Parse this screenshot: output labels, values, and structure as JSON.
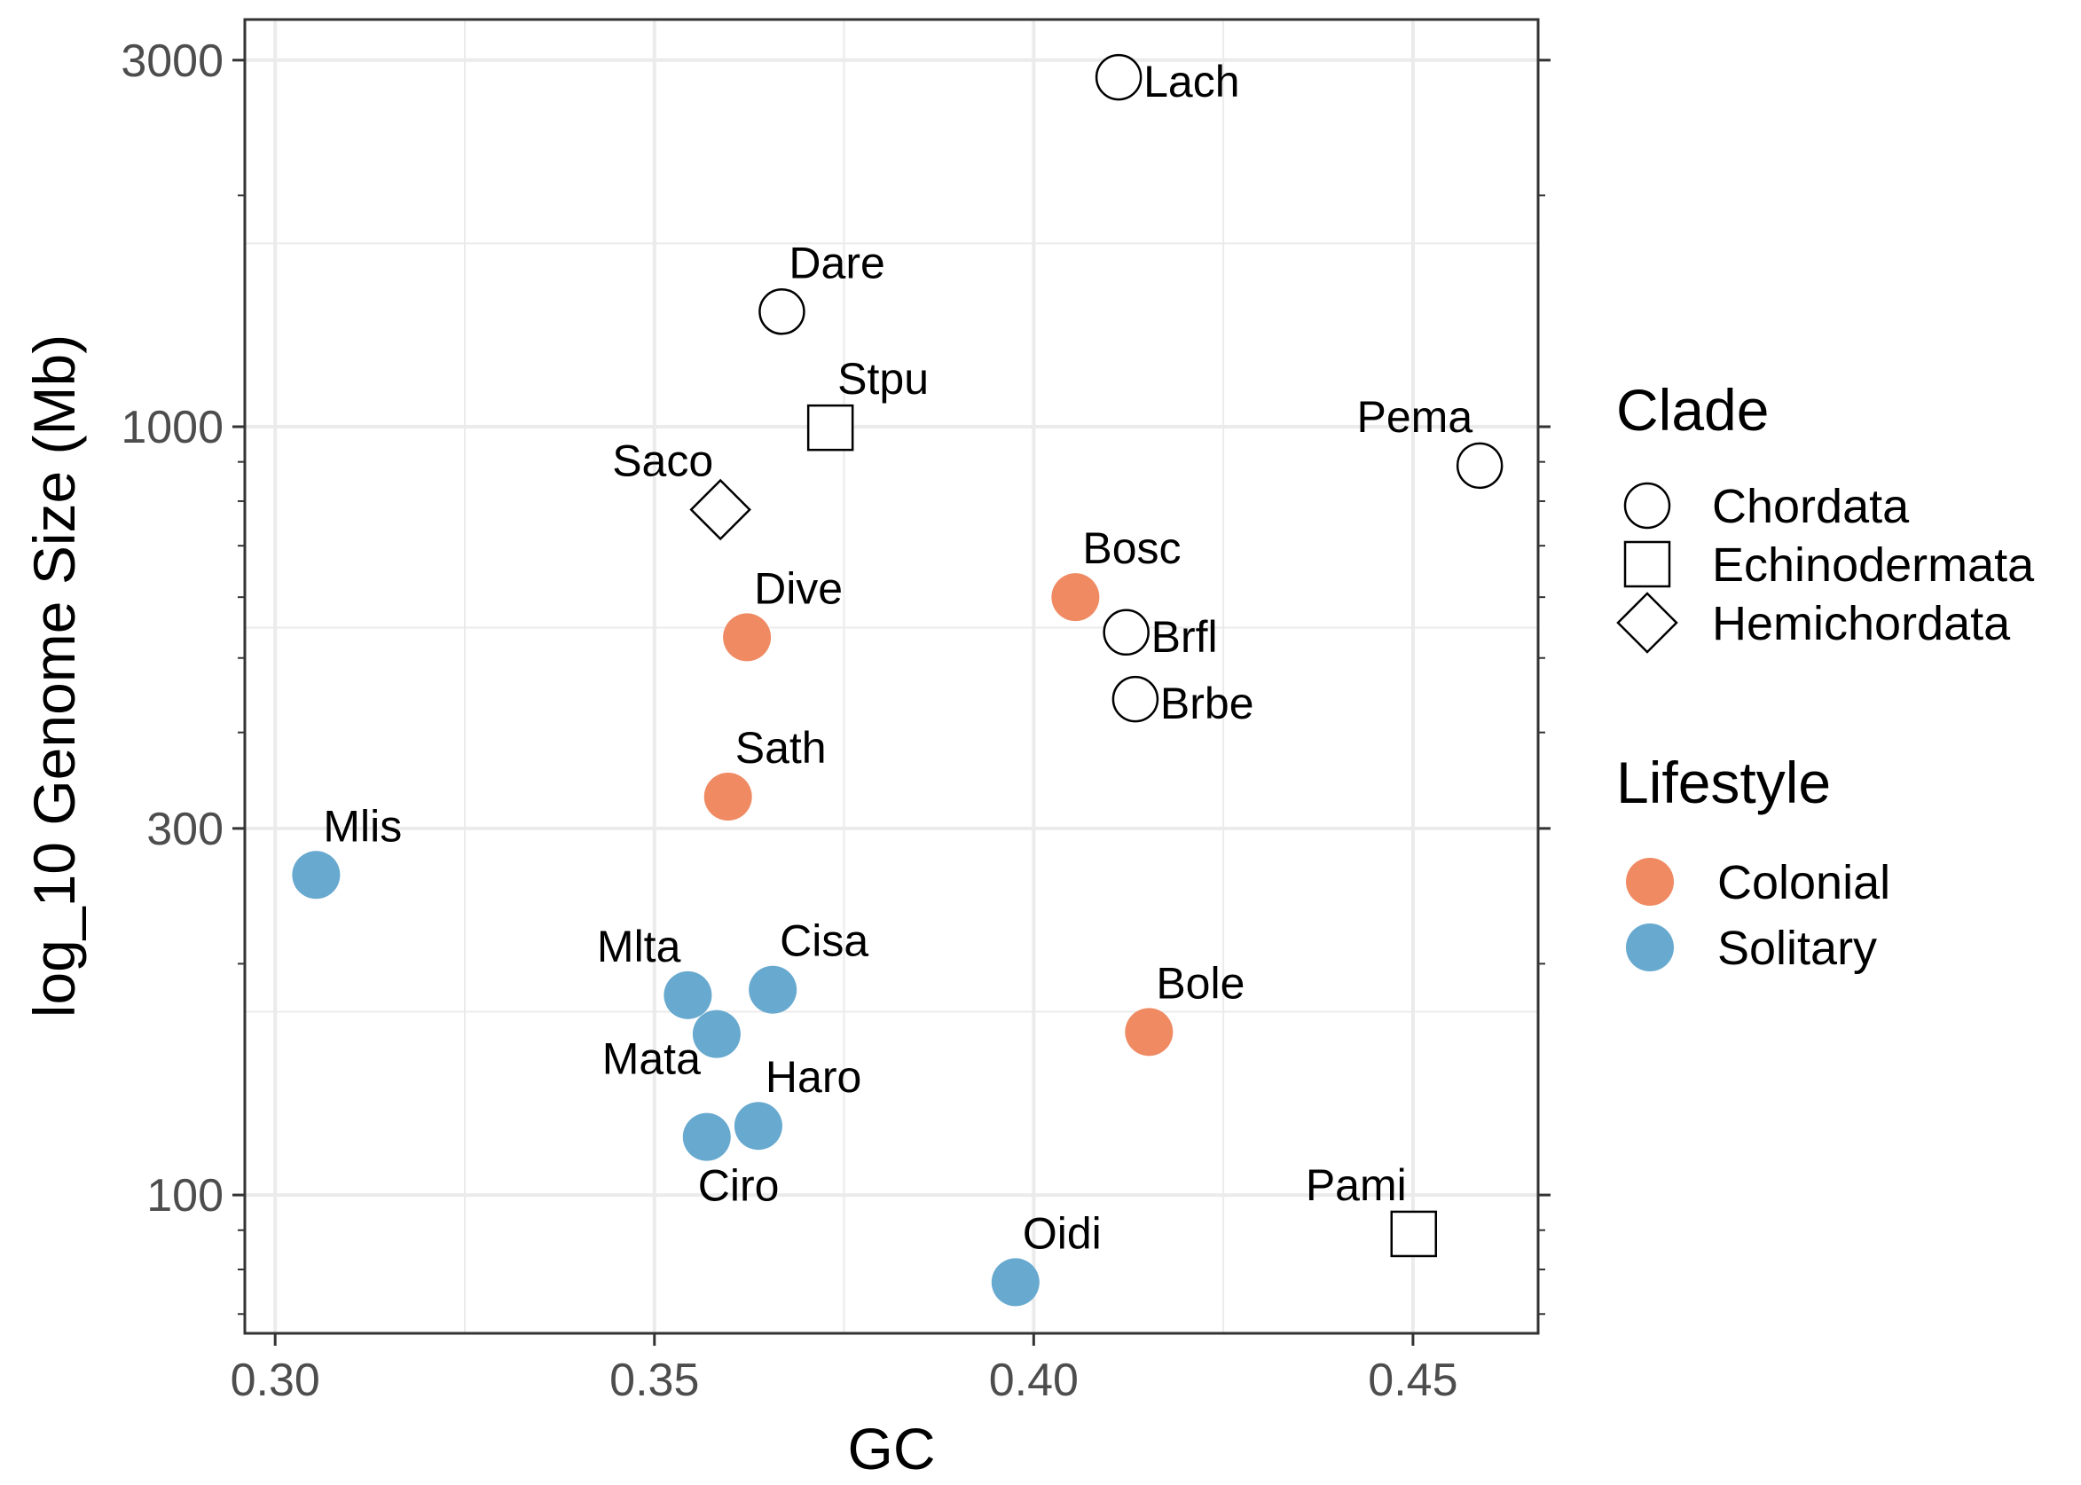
{
  "chart_data": {
    "type": "scatter",
    "title": "",
    "xlabel": "GC",
    "ylabel": "log_10 Genome Size (Mb)",
    "xlim": [
      0.296,
      0.4665
    ],
    "ylim_log10": [
      1.82,
      3.53
    ],
    "y_scale": "log10",
    "x_ticks": [
      0.3,
      0.35,
      0.4,
      0.45
    ],
    "x_tick_labels": [
      "0.30",
      "0.35",
      "0.40",
      "0.45"
    ],
    "y_ticks": [
      100,
      300,
      1000,
      3000
    ],
    "y_tick_labels": [
      "100",
      "300",
      "1000",
      "3000"
    ],
    "grid": true,
    "legend_position": "right",
    "colors": {
      "Colonial": "#ef8a62",
      "Solitary": "#67a9cf"
    },
    "legend": {
      "clade": {
        "title": "Clade",
        "items": [
          {
            "label": "Chordata",
            "shape": "circle"
          },
          {
            "label": "Echinodermata",
            "shape": "square"
          },
          {
            "label": "Hemichordata",
            "shape": "diamond"
          }
        ]
      },
      "lifestyle": {
        "title": "Lifestyle",
        "items": [
          {
            "label": "Colonial"
          },
          {
            "label": "Solitary"
          }
        ]
      }
    },
    "points": [
      {
        "label": "Lach",
        "x": 0.4112,
        "y": 2850,
        "clade": "Chordata",
        "lifestyle": null,
        "label_pos": "right"
      },
      {
        "label": "Dare",
        "x": 0.3668,
        "y": 1412,
        "clade": "Chordata",
        "lifestyle": null,
        "label_pos": "above-right"
      },
      {
        "label": "Stpu",
        "x": 0.3732,
        "y": 997,
        "clade": "Echinodermata",
        "lifestyle": null,
        "label_pos": "above-right"
      },
      {
        "label": "Saco",
        "x": 0.3587,
        "y": 780,
        "clade": "Hemichordata",
        "lifestyle": null,
        "label_pos": "above-left"
      },
      {
        "label": "Pema",
        "x": 0.4588,
        "y": 890,
        "clade": "Chordata",
        "lifestyle": null,
        "label_pos": "above-left"
      },
      {
        "label": "Bosc",
        "x": 0.4055,
        "y": 600,
        "clade": "Chordata",
        "lifestyle": "Colonial",
        "label_pos": "above-right"
      },
      {
        "label": "Brfl",
        "x": 0.4122,
        "y": 540,
        "clade": "Chordata",
        "lifestyle": null,
        "label_pos": "right"
      },
      {
        "label": "Brbe",
        "x": 0.4134,
        "y": 442,
        "clade": "Chordata",
        "lifestyle": null,
        "label_pos": "right"
      },
      {
        "label": "Dive",
        "x": 0.3622,
        "y": 532,
        "clade": "Chordata",
        "lifestyle": "Colonial",
        "label_pos": "above-right"
      },
      {
        "label": "Sath",
        "x": 0.3597,
        "y": 330,
        "clade": "Chordata",
        "lifestyle": "Colonial",
        "label_pos": "above-right"
      },
      {
        "label": "Mlis",
        "x": 0.3054,
        "y": 261,
        "clade": "Chordata",
        "lifestyle": "Solitary",
        "label_pos": "above-right"
      },
      {
        "label": "Mlta",
        "x": 0.3544,
        "y": 182,
        "clade": "Chordata",
        "lifestyle": "Solitary",
        "label_pos": "above-left"
      },
      {
        "label": "Cisa",
        "x": 0.3656,
        "y": 185,
        "clade": "Chordata",
        "lifestyle": "Solitary",
        "label_pos": "above-right"
      },
      {
        "label": "Mata",
        "x": 0.3582,
        "y": 162,
        "clade": "Chordata",
        "lifestyle": "Solitary",
        "label_pos": "below-left"
      },
      {
        "label": "Bole",
        "x": 0.4152,
        "y": 163,
        "clade": "Chordata",
        "lifestyle": "Colonial",
        "label_pos": "above-right"
      },
      {
        "label": "Haro",
        "x": 0.3637,
        "y": 123,
        "clade": "Chordata",
        "lifestyle": "Solitary",
        "label_pos": "above-right"
      },
      {
        "label": "Ciro",
        "x": 0.3569,
        "y": 119,
        "clade": "Chordata",
        "lifestyle": "Solitary",
        "label_pos": "below-right"
      },
      {
        "label": "Pami",
        "x": 0.4501,
        "y": 89,
        "clade": "Echinodermata",
        "lifestyle": null,
        "label_pos": "above-left"
      },
      {
        "label": "Oidi",
        "x": 0.3976,
        "y": 77,
        "clade": "Chordata",
        "lifestyle": "Solitary",
        "label_pos": "above-right"
      }
    ]
  }
}
